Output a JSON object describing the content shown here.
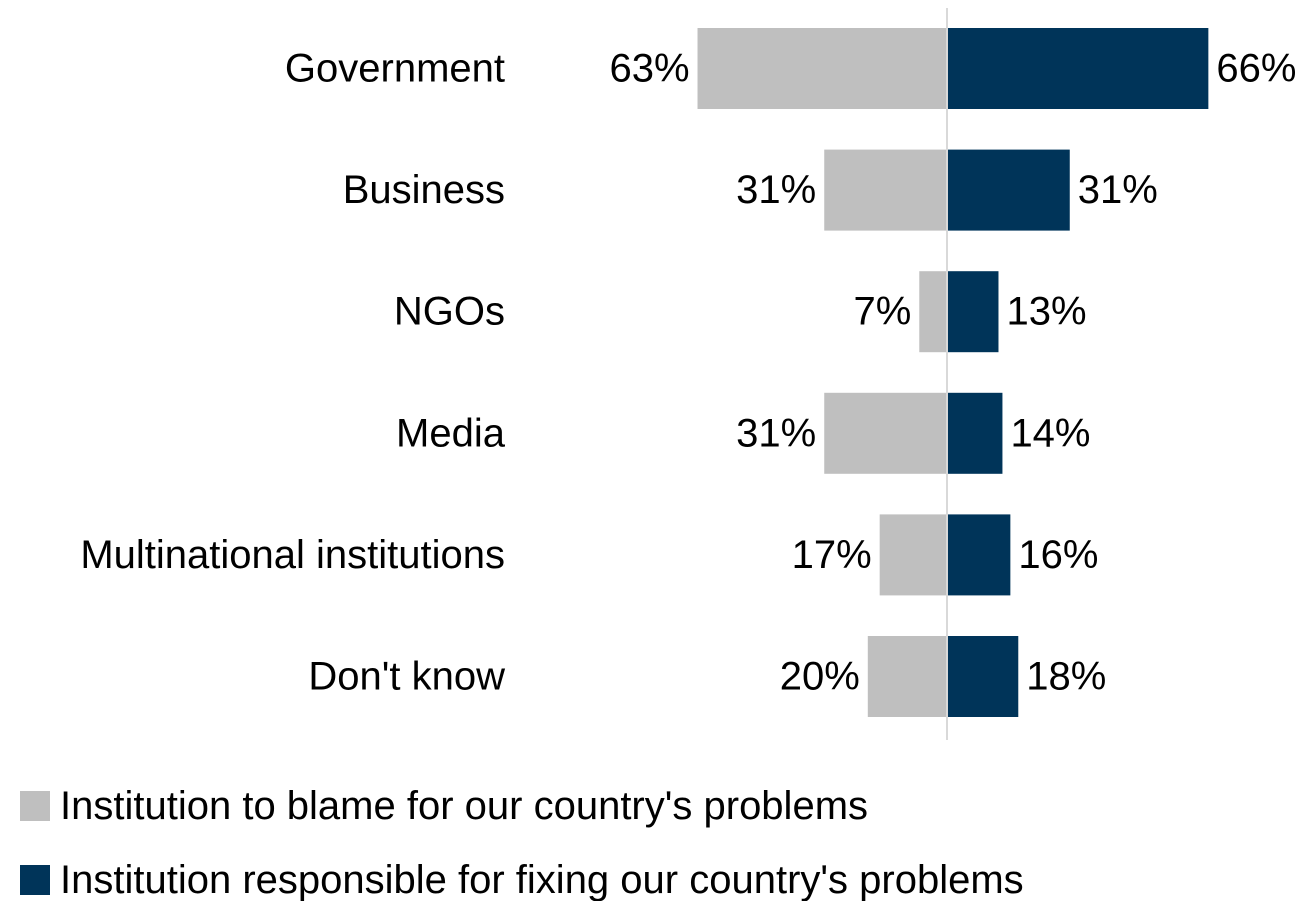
{
  "chart_data": {
    "type": "bar",
    "orientation": "horizontal-diverging",
    "categories": [
      "Government",
      "Business",
      "NGOs",
      "Media",
      "Multinational institutions",
      "Don't know"
    ],
    "series": [
      {
        "name": "Institution to blame for our country's problems",
        "values": [
          63,
          31,
          7,
          31,
          17,
          20
        ],
        "labels": [
          "63%",
          "31%",
          "7%",
          "31%",
          "17%",
          "20%"
        ],
        "color": "#bfbfbf",
        "side": "left"
      },
      {
        "name": "Institution responsible for fixing our country's problems",
        "values": [
          66,
          31,
          13,
          14,
          16,
          18
        ],
        "labels": [
          "66%",
          "31%",
          "13%",
          "14%",
          "16%",
          "18%"
        ],
        "color": "#003459",
        "side": "right"
      }
    ],
    "unit": "%",
    "grid": false,
    "axis_line_color": "#d9d9d9",
    "legend_position": "bottom-left"
  }
}
